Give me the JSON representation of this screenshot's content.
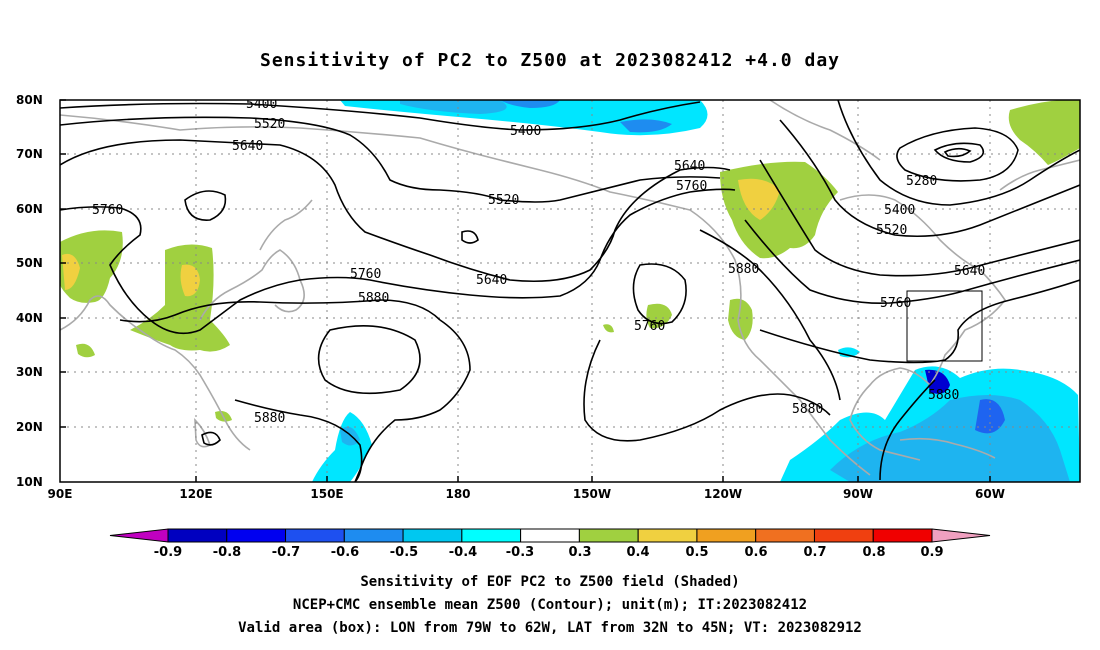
{
  "title": "Sensitivity of PC2 to Z500 at 2023082412 +4.0 day",
  "lat_labels": [
    "80N",
    "70N",
    "60N",
    "50N",
    "40N",
    "30N",
    "20N",
    "10N"
  ],
  "lon_labels": [
    "90E",
    "120E",
    "150E",
    "180",
    "150W",
    "120W",
    "90W",
    "60W"
  ],
  "contour_labels": [
    "5400",
    "5520",
    "5640",
    "5760",
    "5400",
    "5520",
    "5640",
    "5760",
    "5880",
    "5640",
    "5760",
    "5880",
    "5880",
    "5760",
    "5880",
    "5280",
    "5400",
    "5520",
    "5640",
    "5760",
    "5880"
  ],
  "colorbar": {
    "labels": [
      "-0.9",
      "-0.8",
      "-0.7",
      "-0.6",
      "-0.5",
      "-0.4",
      "-0.3",
      "0.3",
      "0.4",
      "0.5",
      "0.6",
      "0.7",
      "0.8",
      "0.9"
    ],
    "colors": [
      "#c000c0",
      "#0000c0",
      "#0000f0",
      "#1e50f0",
      "#1e8cf0",
      "#00c8f0",
      "#00ffff",
      "#ffffff",
      "#a0d040",
      "#f0d040",
      "#f0a020",
      "#f07020",
      "#f04010",
      "#f00000",
      "#f0a0c0"
    ]
  },
  "captions": [
    "Sensitivity of EOF PC2 to Z500 field (Shaded)",
    "NCEP+CMC ensemble mean Z500 (Contour); unit(m); IT:2023082412",
    "Valid area (box): LON from 79W to 62W, LAT from 32N to 45N; VT: 2023082912"
  ]
}
